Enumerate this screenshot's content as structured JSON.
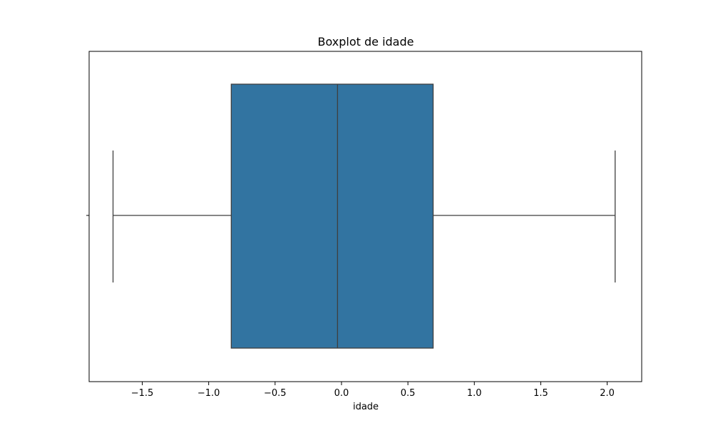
{
  "chart_data": {
    "type": "boxplot",
    "title": "Boxplot de idade",
    "xlabel": "idade",
    "ylabel": "",
    "orientation": "horizontal",
    "xlim": [
      -1.9,
      2.26
    ],
    "xticks": [
      -1.5,
      -1.0,
      -0.5,
      0.0,
      0.5,
      1.0,
      1.5,
      2.0
    ],
    "xtick_labels": [
      "−1.5",
      "−1.0",
      "−0.5",
      "0.0",
      "0.5",
      "1.0",
      "1.5",
      "2.0"
    ],
    "grid": false,
    "box": {
      "whisker_low": -1.72,
      "q1": -0.83,
      "median": -0.03,
      "q3": 0.69,
      "whisker_high": 2.06
    },
    "colors": {
      "box_fill": "#3274a1",
      "line": "#3f3f3f",
      "axes": "#000000"
    }
  }
}
